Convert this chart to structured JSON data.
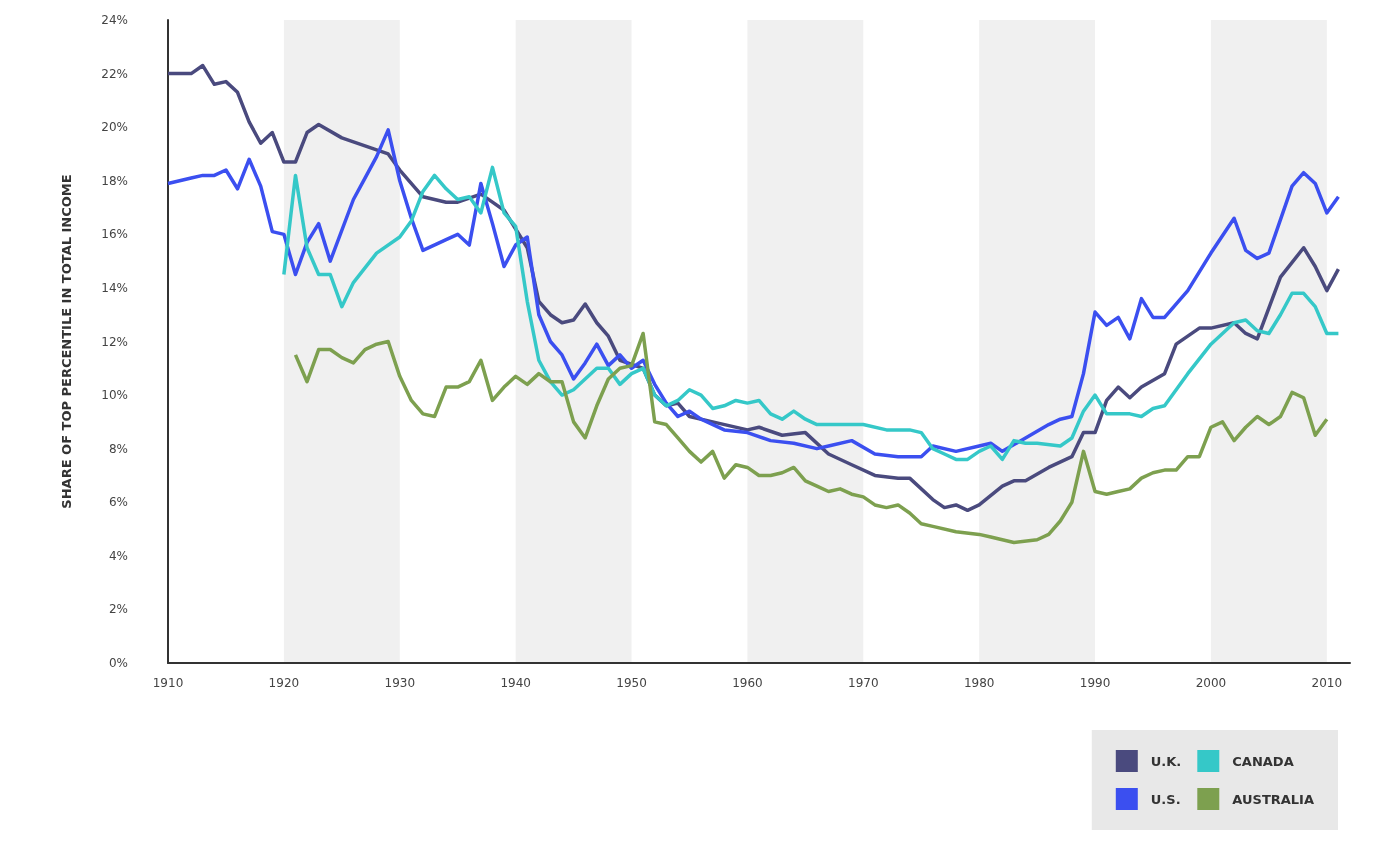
{
  "chart_data": {
    "type": "line",
    "ylabel": "SHARE OF TOP PERCENTILE IN TOTAL INCOME",
    "xlim": [
      1910,
      2012
    ],
    "xticks": [
      1910,
      1920,
      1930,
      1940,
      1950,
      1960,
      1970,
      1980,
      1990,
      2000,
      2010
    ],
    "ylim": [
      0,
      24
    ],
    "yticks": [
      {
        "value": 0,
        "label": "0%"
      },
      {
        "value": 2,
        "label": "2%"
      },
      {
        "value": 4,
        "label": "4%"
      },
      {
        "value": 6,
        "label": "6%"
      },
      {
        "value": 8,
        "label": "8%"
      },
      {
        "value": 10,
        "label": "10%"
      },
      {
        "value": 12,
        "label": "12%"
      },
      {
        "value": 14,
        "label": "14%"
      },
      {
        "value": 16,
        "label": "16%"
      },
      {
        "value": 18,
        "label": "18%"
      },
      {
        "value": 20,
        "label": "20%"
      },
      {
        "value": 22,
        "label": "22%"
      },
      {
        "value": 24,
        "label": "24%"
      }
    ],
    "grid": false,
    "legend": "bottom right",
    "marker": "none",
    "line_style": "solid",
    "bands": [
      {
        "axis": "x",
        "from": 1920,
        "to": 1930,
        "color": "#f0f0f0"
      },
      {
        "axis": "x",
        "from": 1940,
        "to": 1950,
        "color": "#f0f0f0"
      },
      {
        "axis": "x",
        "from": 1960,
        "to": 1970,
        "color": "#f0f0f0"
      },
      {
        "axis": "x",
        "from": 1980,
        "to": 1990,
        "color": "#f0f0f0"
      },
      {
        "axis": "x",
        "from": 2000,
        "to": 2010,
        "color": "#f0f0f0"
      }
    ],
    "series": [
      {
        "name": "U.K.",
        "color": "#4a4a7e",
        "x": [
          1910,
          1912,
          1913,
          1914,
          1915,
          1916,
          1917,
          1918,
          1919,
          1920,
          1921,
          1922,
          1923,
          1925,
          1927,
          1929,
          1930,
          1932,
          1934,
          1935,
          1937,
          1938,
          1939,
          1941,
          1942,
          1943,
          1944,
          1945,
          1946,
          1947,
          1948,
          1949,
          1951,
          1952,
          1953,
          1954,
          1955,
          1957,
          1960,
          1961,
          1963,
          1965,
          1967,
          1969,
          1971,
          1973,
          1974,
          1976,
          1977,
          1978,
          1979,
          1980,
          1982,
          1983,
          1984,
          1986,
          1988,
          1989,
          1990,
          1991,
          1992,
          1993,
          1994,
          1996,
          1997,
          1998,
          1999,
          2000,
          2002,
          2003,
          2004,
          2006,
          2008,
          2009,
          2010,
          2011
        ],
        "values": [
          22.0,
          22.0,
          22.3,
          21.6,
          21.7,
          21.3,
          20.2,
          19.4,
          19.8,
          18.7,
          18.7,
          19.8,
          20.1,
          19.6,
          19.3,
          19.0,
          18.4,
          17.4,
          17.2,
          17.2,
          17.5,
          17.2,
          16.9,
          15.5,
          13.5,
          13.0,
          12.7,
          12.8,
          13.4,
          12.7,
          12.2,
          11.3,
          11.0,
          10.0,
          9.6,
          9.7,
          9.2,
          9.0,
          8.7,
          8.8,
          8.5,
          8.6,
          7.8,
          7.4,
          7.0,
          6.9,
          6.9,
          6.1,
          5.8,
          5.9,
          5.7,
          5.9,
          6.6,
          6.8,
          6.8,
          7.3,
          7.7,
          8.6,
          8.6,
          9.8,
          10.3,
          9.9,
          10.3,
          10.8,
          11.9,
          12.2,
          12.5,
          12.5,
          12.7,
          12.3,
          12.1,
          14.4,
          15.5,
          14.8,
          13.9,
          14.7
        ]
      },
      {
        "name": "U.S.",
        "color": "#3b4ff0",
        "x": [
          1910,
          1911,
          1912,
          1913,
          1914,
          1915,
          1916,
          1917,
          1918,
          1919,
          1920,
          1921,
          1922,
          1923,
          1924,
          1926,
          1927,
          1928,
          1929,
          1930,
          1931,
          1932,
          1934,
          1935,
          1936,
          1937,
          1938,
          1939,
          1940,
          1941,
          1942,
          1943,
          1944,
          1945,
          1946,
          1947,
          1948,
          1949,
          1950,
          1951,
          1952,
          1953,
          1954,
          1955,
          1956,
          1958,
          1960,
          1962,
          1964,
          1966,
          1967,
          1969,
          1971,
          1973,
          1975,
          1976,
          1978,
          1980,
          1981,
          1982,
          1984,
          1986,
          1987,
          1988,
          1989,
          1990,
          1991,
          1992,
          1993,
          1994,
          1995,
          1996,
          1998,
          2000,
          2002,
          2003,
          2004,
          2005,
          2007,
          2008,
          2009,
          2010,
          2011
        ],
        "values": [
          17.9,
          18.0,
          18.1,
          18.2,
          18.2,
          18.4,
          17.7,
          18.8,
          17.8,
          16.1,
          16.0,
          14.5,
          15.7,
          16.4,
          15.0,
          17.3,
          18.1,
          18.9,
          19.9,
          18.0,
          16.6,
          15.4,
          15.8,
          16.0,
          15.6,
          17.9,
          16.4,
          14.8,
          15.6,
          15.9,
          13.0,
          12.0,
          11.5,
          10.6,
          11.2,
          11.9,
          11.1,
          11.5,
          11.0,
          11.3,
          10.4,
          9.7,
          9.2,
          9.4,
          9.1,
          8.7,
          8.6,
          8.3,
          8.2,
          8.0,
          8.1,
          8.3,
          7.8,
          7.7,
          7.7,
          8.1,
          7.9,
          8.1,
          8.2,
          7.9,
          8.4,
          8.9,
          9.1,
          9.2,
          10.8,
          13.1,
          12.6,
          12.9,
          12.1,
          13.6,
          12.9,
          12.9,
          13.9,
          15.3,
          16.6,
          15.4,
          15.1,
          15.3,
          17.8,
          18.3,
          17.9,
          16.8,
          17.4
        ]
      },
      {
        "name": "CANADA",
        "color": "#35c8c8",
        "x": [
          1920,
          1921,
          1922,
          1923,
          1924,
          1925,
          1926,
          1928,
          1930,
          1931,
          1932,
          1933,
          1934,
          1935,
          1936,
          1937,
          1938,
          1939,
          1940,
          1941,
          1942,
          1943,
          1944,
          1945,
          1946,
          1947,
          1948,
          1949,
          1950,
          1951,
          1952,
          1953,
          1954,
          1955,
          1956,
          1957,
          1958,
          1959,
          1960,
          1961,
          1962,
          1963,
          1964,
          1965,
          1966,
          1968,
          1970,
          1972,
          1974,
          1975,
          1976,
          1977,
          1978,
          1979,
          1980,
          1981,
          1982,
          1983,
          1984,
          1985,
          1987,
          1988,
          1989,
          1990,
          1991,
          1993,
          1994,
          1995,
          1996,
          1998,
          2000,
          2002,
          2003,
          2004,
          2005,
          2006,
          2007,
          2008,
          2009,
          2010,
          2011
        ],
        "values": [
          14.5,
          18.2,
          15.5,
          14.5,
          14.5,
          13.3,
          14.2,
          15.3,
          15.9,
          16.5,
          17.6,
          18.2,
          17.7,
          17.3,
          17.4,
          16.8,
          18.5,
          16.8,
          16.3,
          13.5,
          11.3,
          10.5,
          10.0,
          10.2,
          10.6,
          11.0,
          11.0,
          10.4,
          10.8,
          11.0,
          10.0,
          9.6,
          9.8,
          10.2,
          10.0,
          9.5,
          9.6,
          9.8,
          9.7,
          9.8,
          9.3,
          9.1,
          9.4,
          9.1,
          8.9,
          8.9,
          8.9,
          8.7,
          8.7,
          8.6,
          8.0,
          7.8,
          7.6,
          7.6,
          7.9,
          8.1,
          7.6,
          8.3,
          8.2,
          8.2,
          8.1,
          8.4,
          9.4,
          10.0,
          9.3,
          9.3,
          9.2,
          9.5,
          9.6,
          10.8,
          11.9,
          12.7,
          12.8,
          12.4,
          12.3,
          13.0,
          13.8,
          13.8,
          13.3,
          12.3,
          12.3
        ]
      },
      {
        "name": "AUSTRALIA",
        "color": "#7da04f",
        "x": [
          1921,
          1922,
          1923,
          1924,
          1925,
          1926,
          1927,
          1928,
          1929,
          1930,
          1931,
          1932,
          1933,
          1934,
          1935,
          1936,
          1937,
          1938,
          1939,
          1940,
          1941,
          1942,
          1943,
          1944,
          1945,
          1946,
          1947,
          1948,
          1949,
          1950,
          1951,
          1952,
          1953,
          1954,
          1955,
          1956,
          1957,
          1958,
          1959,
          1960,
          1961,
          1962,
          1963,
          1964,
          1965,
          1966,
          1967,
          1968,
          1969,
          1970,
          1971,
          1972,
          1973,
          1974,
          1975,
          1976,
          1978,
          1980,
          1981,
          1982,
          1983,
          1985,
          1986,
          1987,
          1988,
          1989,
          1990,
          1991,
          1992,
          1993,
          1994,
          1995,
          1996,
          1997,
          1998,
          1999,
          2000,
          2001,
          2002,
          2003,
          2004,
          2005,
          2006,
          2007,
          2008,
          2009,
          2010
        ],
        "values": [
          11.5,
          10.5,
          11.7,
          11.7,
          11.4,
          11.2,
          11.7,
          11.9,
          12.0,
          10.7,
          9.8,
          9.3,
          9.2,
          10.3,
          10.3,
          10.5,
          11.3,
          9.8,
          10.3,
          10.7,
          10.4,
          10.8,
          10.5,
          10.5,
          9.0,
          8.4,
          9.6,
          10.6,
          11.0,
          11.1,
          12.3,
          9.0,
          8.9,
          8.4,
          7.9,
          7.5,
          7.9,
          6.9,
          7.4,
          7.3,
          7.0,
          7.0,
          7.1,
          7.3,
          6.8,
          6.6,
          6.4,
          6.5,
          6.3,
          6.2,
          5.9,
          5.8,
          5.9,
          5.6,
          5.2,
          5.1,
          4.9,
          4.8,
          4.7,
          4.6,
          4.5,
          4.6,
          4.8,
          5.3,
          6.0,
          7.9,
          6.4,
          6.3,
          6.4,
          6.5,
          6.9,
          7.1,
          7.2,
          7.2,
          7.7,
          7.7,
          8.8,
          9.0,
          8.3,
          8.8,
          9.2,
          8.9,
          9.2,
          10.1,
          9.9,
          8.5,
          9.1
        ]
      }
    ]
  }
}
